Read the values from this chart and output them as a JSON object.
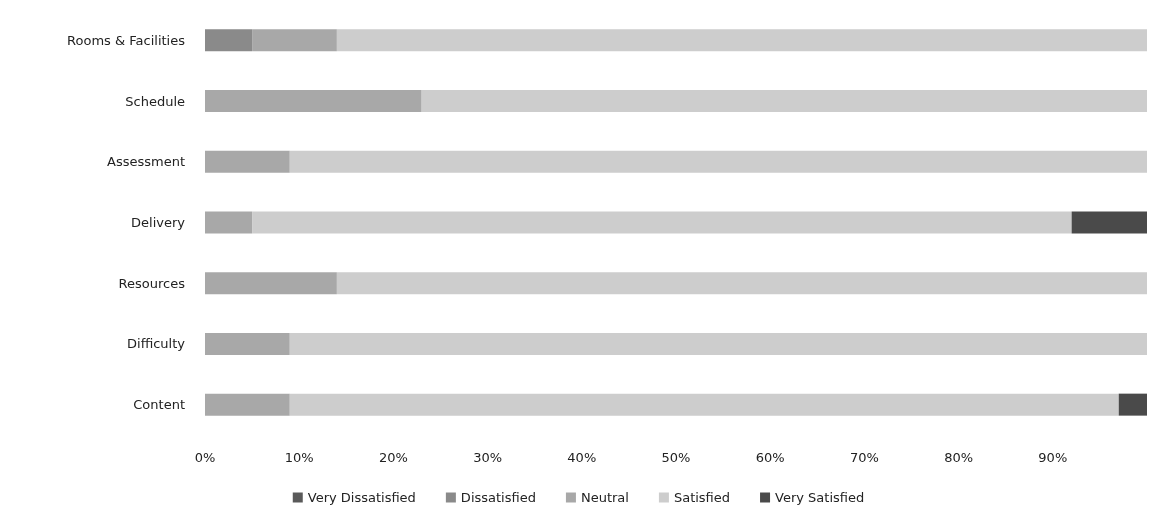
{
  "chart_data": {
    "type": "bar",
    "orientation": "horizontal",
    "stacked": true,
    "categories": [
      "Rooms & Facilities",
      "Schedule",
      "Assessment",
      "Delivery",
      "Resources",
      "Difficulty",
      "Content"
    ],
    "series": [
      {
        "name": "Very Dissatisfied",
        "color": "#5a5a5a",
        "values": [
          0,
          0,
          0,
          0,
          0,
          0,
          0
        ]
      },
      {
        "name": "Dissatisfied",
        "color": "#8a8a8a",
        "values": [
          5,
          0,
          0,
          0,
          0,
          0,
          0
        ]
      },
      {
        "name": "Neutral",
        "color": "#a8a8a8",
        "values": [
          9,
          23,
          9,
          5,
          14,
          9,
          9
        ]
      },
      {
        "name": "Satisfied",
        "color": "#cdcdcd",
        "values": [
          86,
          77,
          91,
          87,
          86,
          91,
          88
        ]
      },
      {
        "name": "Very Satisfied",
        "color": "#4a4a4a",
        "values": [
          0,
          0,
          0,
          8,
          0,
          0,
          3
        ]
      }
    ],
    "xlim": [
      0,
      100
    ],
    "xticks": [
      {
        "value": 0,
        "label": "0%"
      },
      {
        "value": 10,
        "label": "10%"
      },
      {
        "value": 20,
        "label": "20%"
      },
      {
        "value": 30,
        "label": "30%"
      },
      {
        "value": 40,
        "label": "40%"
      },
      {
        "value": 50,
        "label": "50%"
      },
      {
        "value": 60,
        "label": "60%"
      },
      {
        "value": 70,
        "label": "70%"
      },
      {
        "value": 80,
        "label": "80%"
      },
      {
        "value": 90,
        "label": "90%"
      }
    ],
    "legend": "bottom",
    "grid": false
  }
}
